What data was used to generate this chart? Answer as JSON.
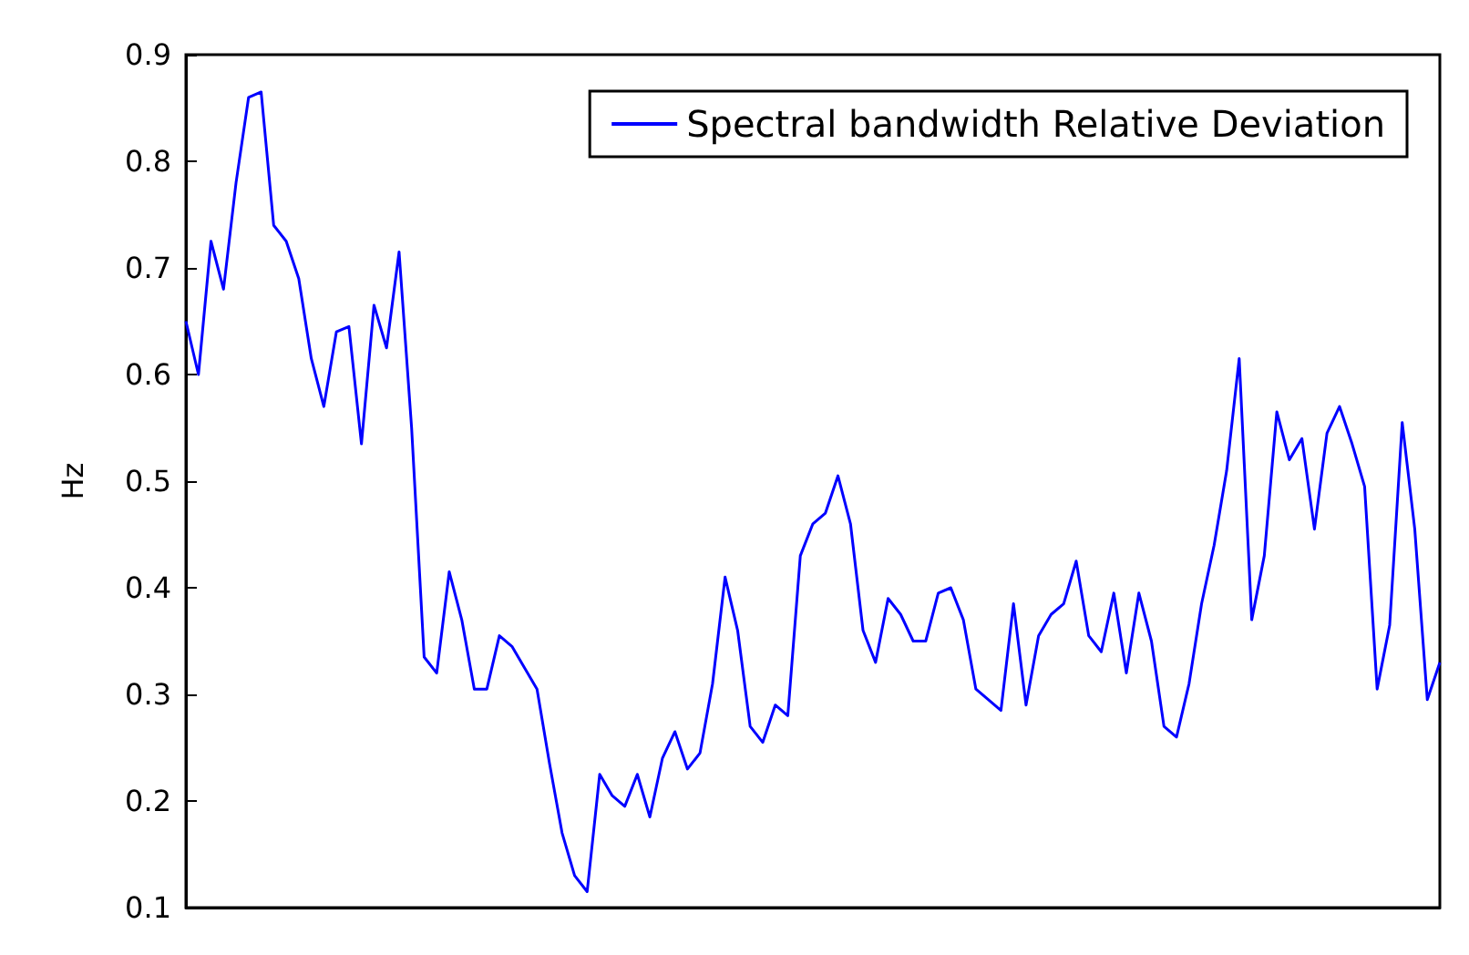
{
  "chart_data": {
    "type": "line",
    "ylabel": "Hz",
    "ylim": [
      0.1,
      0.9
    ],
    "yticks": [
      0.1,
      0.2,
      0.3,
      0.4,
      0.5,
      0.6,
      0.7,
      0.8,
      0.9
    ],
    "grid": false,
    "legend": "top right",
    "marker": "none",
    "line_style": "solid",
    "categories": [
      null,
      null,
      null,
      null,
      null,
      null,
      null,
      null,
      null,
      null,
      null,
      null,
      null,
      null,
      null,
      null,
      null,
      null,
      null,
      null,
      null,
      null,
      null,
      null,
      null,
      null,
      null,
      null,
      null,
      null,
      null,
      null,
      null,
      null,
      null,
      null,
      null,
      null,
      null,
      null,
      null,
      null,
      null,
      null,
      null,
      null,
      null,
      null,
      null,
      null,
      null,
      null,
      null,
      null,
      null,
      null,
      null,
      null,
      null,
      null,
      null,
      null,
      null,
      null,
      null,
      null,
      null,
      null,
      null,
      null,
      null,
      null,
      null,
      null,
      null,
      null,
      null,
      null,
      null,
      null,
      null,
      null,
      null,
      null,
      null,
      null,
      null,
      null,
      null,
      null,
      null,
      null,
      null,
      null,
      null,
      null,
      null,
      null,
      null,
      null,
      null
    ],
    "series": [
      {
        "name": "Spectral bandwidth Relative Deviation",
        "color": "#0000ff",
        "values": [
          0.65,
          0.6,
          0.725,
          0.68,
          0.78,
          0.86,
          0.865,
          0.74,
          0.725,
          0.69,
          0.615,
          0.57,
          0.64,
          0.645,
          0.535,
          0.665,
          0.625,
          0.715,
          0.55,
          0.335,
          0.32,
          0.415,
          0.37,
          0.305,
          0.305,
          0.355,
          0.345,
          0.325,
          0.305,
          0.235,
          0.17,
          0.13,
          0.115,
          0.225,
          0.205,
          0.195,
          0.225,
          0.185,
          0.24,
          0.265,
          0.23,
          0.245,
          0.31,
          0.41,
          0.36,
          0.27,
          0.255,
          0.29,
          0.28,
          0.43,
          0.46,
          0.47,
          0.505,
          0.46,
          0.36,
          0.33,
          0.39,
          0.375,
          0.35,
          0.35,
          0.395,
          0.4,
          0.37,
          0.305,
          0.295,
          0.285,
          0.385,
          0.29,
          0.355,
          0.375,
          0.385,
          0.425,
          0.355,
          0.34,
          0.395,
          0.32,
          0.395,
          0.35,
          0.27,
          0.26,
          0.31,
          0.385,
          0.44,
          0.51,
          0.615,
          0.37,
          0.43,
          0.565,
          0.52,
          0.54,
          0.455,
          0.545,
          0.57,
          0.535,
          0.495,
          0.305,
          0.365,
          0.555,
          0.455,
          0.295,
          0.33
        ]
      }
    ]
  }
}
